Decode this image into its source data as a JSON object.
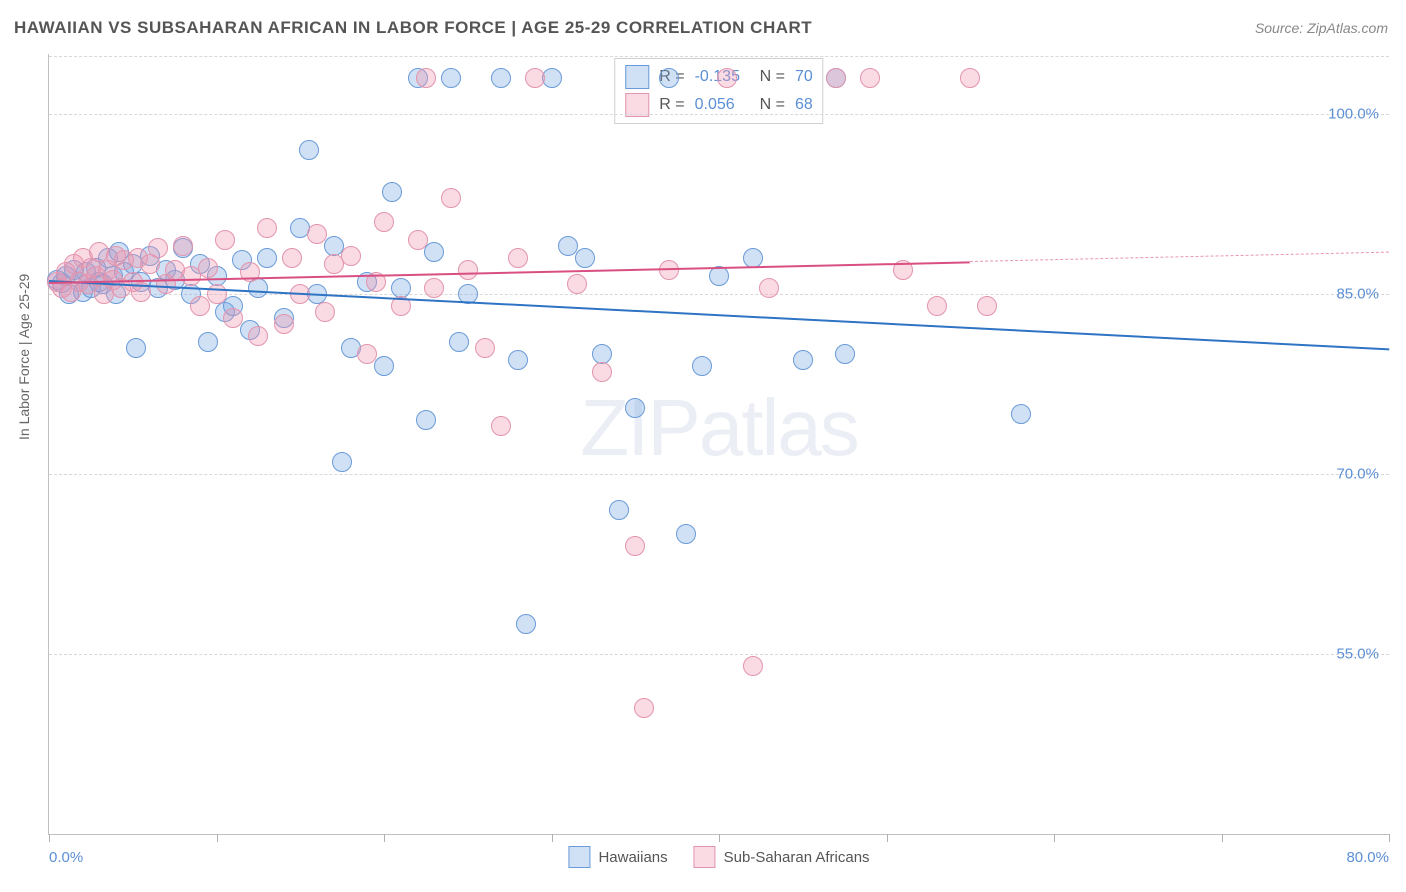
{
  "title": "HAWAIIAN VS SUBSAHARAN AFRICAN IN LABOR FORCE | AGE 25-29 CORRELATION CHART",
  "source": "Source: ZipAtlas.com",
  "ylabel": "In Labor Force | Age 25-29",
  "watermark_zip": "ZIP",
  "watermark_atlas": "atlas",
  "chart": {
    "type": "scatter",
    "xlim": [
      0,
      80
    ],
    "ylim": [
      40,
      105
    ],
    "xtick_positions": [
      0,
      10,
      20,
      30,
      40,
      50,
      60,
      70,
      80
    ],
    "xtick_label_left": "0.0%",
    "xtick_label_right": "80.0%",
    "yticks": [
      55.0,
      70.0,
      85.0,
      100.0
    ],
    "ytick_labels": [
      "55.0%",
      "70.0%",
      "85.0%",
      "100.0%"
    ],
    "grid_color": "#d8d8d8",
    "axis_color": "#c0c0c0",
    "background_color": "#ffffff",
    "point_radius": 9,
    "series": [
      {
        "name": "Hawaiians",
        "color_fill": "rgba(120,165,225,0.35)",
        "color_stroke": "#6a9bd8",
        "trend_color": "#2f74c4",
        "trend_y_start": 86.2,
        "trend_y_end": 80.5,
        "trend_solid_x_end": 80,
        "stats_r": "-0.135",
        "stats_n": "70",
        "points": [
          [
            0.5,
            86.2
          ],
          [
            0.8,
            85.9
          ],
          [
            1.0,
            86.5
          ],
          [
            1.2,
            85.0
          ],
          [
            1.5,
            87.0
          ],
          [
            1.8,
            86.0
          ],
          [
            2.0,
            85.2
          ],
          [
            2.2,
            86.8
          ],
          [
            2.5,
            85.5
          ],
          [
            2.8,
            87.2
          ],
          [
            3.0,
            86.0
          ],
          [
            3.2,
            85.8
          ],
          [
            3.5,
            88.0
          ],
          [
            3.8,
            86.5
          ],
          [
            4.0,
            85.0
          ],
          [
            4.2,
            88.5
          ],
          [
            4.5,
            86.8
          ],
          [
            5.0,
            87.5
          ],
          [
            5.2,
            80.5
          ],
          [
            5.5,
            86.0
          ],
          [
            6.0,
            88.2
          ],
          [
            6.5,
            85.5
          ],
          [
            7.0,
            87.0
          ],
          [
            7.5,
            86.2
          ],
          [
            8.0,
            88.8
          ],
          [
            8.5,
            85.0
          ],
          [
            9.0,
            87.5
          ],
          [
            9.5,
            81.0
          ],
          [
            10.0,
            86.5
          ],
          [
            10.5,
            83.5
          ],
          [
            11.0,
            84.0
          ],
          [
            11.5,
            87.8
          ],
          [
            12.0,
            82.0
          ],
          [
            12.5,
            85.5
          ],
          [
            13.0,
            88.0
          ],
          [
            14.0,
            83.0
          ],
          [
            15.0,
            90.5
          ],
          [
            15.5,
            97.0
          ],
          [
            16.0,
            85.0
          ],
          [
            17.0,
            89.0
          ],
          [
            17.5,
            71.0
          ],
          [
            18.0,
            80.5
          ],
          [
            19.0,
            86.0
          ],
          [
            20.0,
            79.0
          ],
          [
            20.5,
            93.5
          ],
          [
            21.0,
            85.5
          ],
          [
            22.0,
            103.0
          ],
          [
            22.5,
            74.5
          ],
          [
            23.0,
            88.5
          ],
          [
            24.0,
            103.0
          ],
          [
            24.5,
            81.0
          ],
          [
            25.0,
            85.0
          ],
          [
            27.0,
            103.0
          ],
          [
            28.0,
            79.5
          ],
          [
            28.5,
            57.5
          ],
          [
            30.0,
            103.0
          ],
          [
            31.0,
            89.0
          ],
          [
            32.0,
            88.0
          ],
          [
            33.0,
            80.0
          ],
          [
            34.0,
            67.0
          ],
          [
            35.0,
            75.5
          ],
          [
            37.0,
            103.0
          ],
          [
            38.0,
            65.0
          ],
          [
            39.0,
            79.0
          ],
          [
            40.0,
            86.5
          ],
          [
            42.0,
            88.0
          ],
          [
            45.0,
            79.5
          ],
          [
            47.0,
            103.0
          ],
          [
            47.5,
            80.0
          ],
          [
            58.0,
            75.0
          ]
        ]
      },
      {
        "name": "Sub-Saharan Africans",
        "color_fill": "rgba(240,150,175,0.35)",
        "color_stroke": "#e295ae",
        "trend_color": "#d94f82",
        "trend_y_start": 86.0,
        "trend_y_end": 88.5,
        "trend_solid_x_end": 55,
        "stats_r": "0.056",
        "stats_n": "68",
        "points": [
          [
            0.5,
            86.0
          ],
          [
            0.8,
            85.5
          ],
          [
            1.0,
            86.8
          ],
          [
            1.3,
            85.2
          ],
          [
            1.5,
            87.5
          ],
          [
            1.8,
            86.0
          ],
          [
            2.0,
            88.0
          ],
          [
            2.3,
            85.8
          ],
          [
            2.5,
            87.2
          ],
          [
            2.8,
            86.5
          ],
          [
            3.0,
            88.5
          ],
          [
            3.3,
            85.0
          ],
          [
            3.5,
            87.0
          ],
          [
            3.8,
            86.2
          ],
          [
            4.0,
            88.2
          ],
          [
            4.3,
            85.5
          ],
          [
            4.5,
            87.8
          ],
          [
            5.0,
            86.0
          ],
          [
            5.3,
            88.0
          ],
          [
            5.5,
            85.2
          ],
          [
            6.0,
            87.5
          ],
          [
            6.5,
            88.8
          ],
          [
            7.0,
            85.8
          ],
          [
            7.5,
            87.0
          ],
          [
            8.0,
            89.0
          ],
          [
            8.5,
            86.5
          ],
          [
            9.0,
            84.0
          ],
          [
            9.5,
            87.2
          ],
          [
            10.0,
            85.0
          ],
          [
            10.5,
            89.5
          ],
          [
            11.0,
            83.0
          ],
          [
            12.0,
            86.8
          ],
          [
            12.5,
            81.5
          ],
          [
            13.0,
            90.5
          ],
          [
            14.0,
            82.5
          ],
          [
            14.5,
            88.0
          ],
          [
            15.0,
            85.0
          ],
          [
            16.0,
            90.0
          ],
          [
            16.5,
            83.5
          ],
          [
            17.0,
            87.5
          ],
          [
            18.0,
            88.2
          ],
          [
            19.0,
            80.0
          ],
          [
            19.5,
            86.0
          ],
          [
            20.0,
            91.0
          ],
          [
            21.0,
            84.0
          ],
          [
            22.0,
            89.5
          ],
          [
            22.5,
            103.0
          ],
          [
            23.0,
            85.5
          ],
          [
            24.0,
            93.0
          ],
          [
            25.0,
            87.0
          ],
          [
            26.0,
            80.5
          ],
          [
            27.0,
            74.0
          ],
          [
            28.0,
            88.0
          ],
          [
            29.0,
            103.0
          ],
          [
            31.5,
            85.8
          ],
          [
            33.0,
            78.5
          ],
          [
            35.0,
            64.0
          ],
          [
            35.5,
            50.5
          ],
          [
            37.0,
            87.0
          ],
          [
            40.5,
            103.0
          ],
          [
            42.0,
            54.0
          ],
          [
            43.0,
            85.5
          ],
          [
            47.0,
            103.0
          ],
          [
            49.0,
            103.0
          ],
          [
            51.0,
            87.0
          ],
          [
            53.0,
            84.0
          ],
          [
            55.0,
            103.0
          ],
          [
            56.0,
            84.0
          ]
        ]
      }
    ]
  },
  "stats_labels": {
    "r_label": "R =",
    "n_label": "N ="
  }
}
